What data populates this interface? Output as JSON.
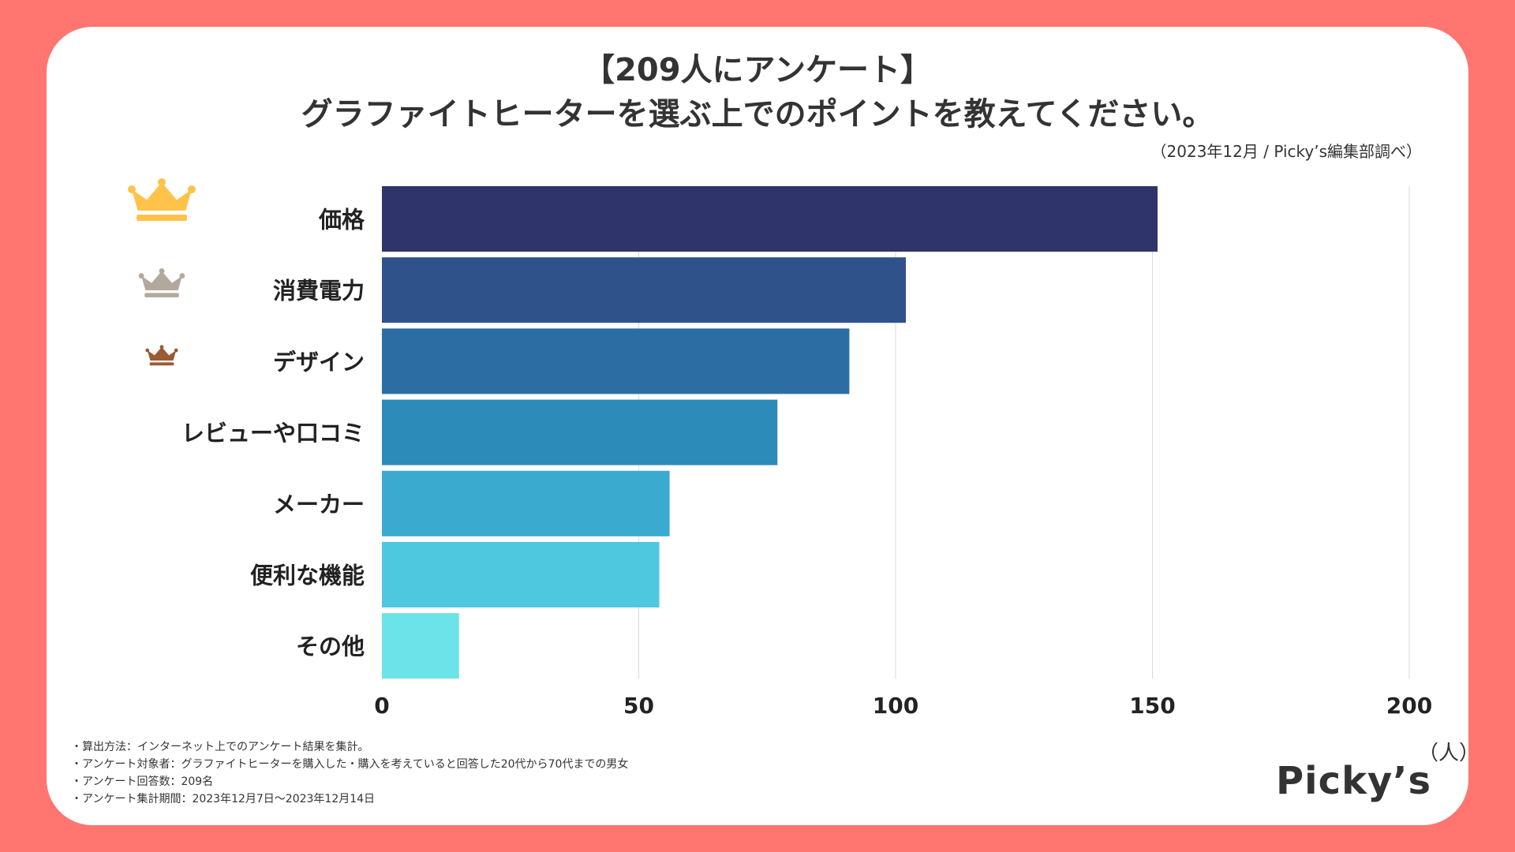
{
  "title_line1": "【209人にアンケート】",
  "title_line2": "グラファイトヒーターを選ぶ上でのポイントを教えてください。",
  "source": "（2023年12月 / Picky’s編集部調べ）",
  "unit": "（人）",
  "logo": "Picky’s",
  "notes": [
    "・算出方法：インターネット上でのアンケート結果を集計。",
    "・アンケート対象者：グラファイトヒーターを購入した・購入を考えていると回答した20代から70代までの男女",
    "・アンケート回答数：209名",
    "・アンケート集計期間：2023年12月7日〜2023年12月14日"
  ],
  "chart_data": {
    "type": "bar",
    "orientation": "horizontal",
    "categories": [
      "価格",
      "消費電力",
      "デザイン",
      "レビューや口コミ",
      "メーカー",
      "便利な機能",
      "その他"
    ],
    "values": [
      151,
      102,
      91,
      77,
      56,
      54,
      15
    ],
    "bar_colors": [
      "#2F346B",
      "#30528A",
      "#2C6EA3",
      "#2D8BBA",
      "#3AAACF",
      "#4EC8DE",
      "#6BE3E8"
    ],
    "crowns": [
      {
        "rank": 1,
        "color": "#FFC24A",
        "icon": "crown-icon"
      },
      {
        "rank": 2,
        "color": "#B3A89C",
        "icon": "crown-icon"
      },
      {
        "rank": 3,
        "color": "#9A5A33",
        "icon": "crown-icon"
      }
    ],
    "xlim": [
      0,
      200
    ],
    "xticks": [
      0,
      50,
      100,
      150,
      200
    ],
    "xlabel": "（人）",
    "grid": true
  }
}
